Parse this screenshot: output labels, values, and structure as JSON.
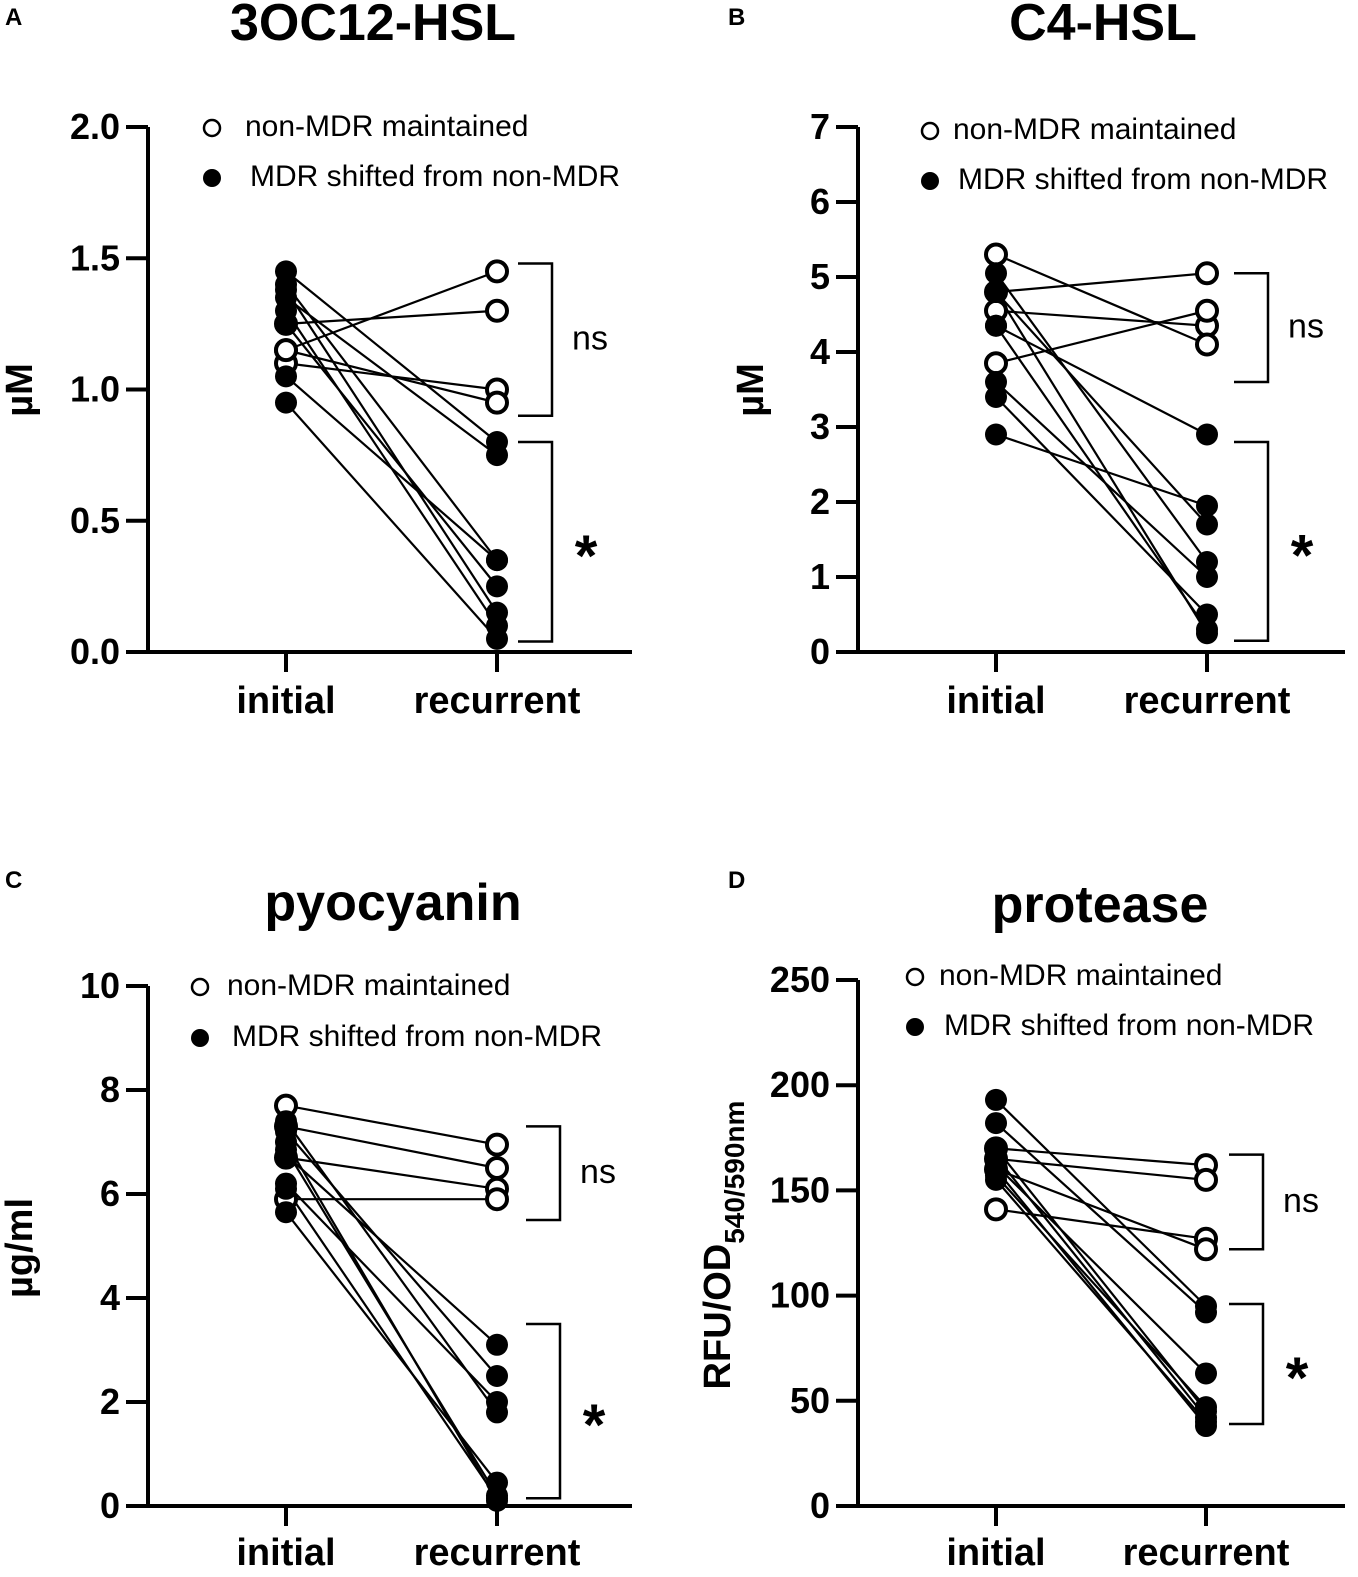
{
  "figure": {
    "panel_letters": [
      "A",
      "B",
      "C",
      "D"
    ]
  },
  "chart_data": [
    {
      "panel": "A",
      "type": "scatter",
      "title": "3OC12-HSL",
      "xlabel": "",
      "ylabel": "µM",
      "categories": [
        "initial",
        "recurrent"
      ],
      "ylim": [
        0,
        2.0
      ],
      "yticks": [
        0.0,
        0.5,
        1.0,
        1.5,
        2.0
      ],
      "ytick_labels": [
        "0.0",
        "0.5",
        "1.0",
        "1.5",
        "2.0"
      ],
      "legend": {
        "position": "top",
        "items": [
          {
            "label": "non-MDR maintained",
            "marker": "open"
          },
          {
            "label": "MDR shifted from non-MDR",
            "marker": "filled"
          }
        ]
      },
      "brackets": [
        {
          "label": "ns",
          "from": 0.9,
          "to": 1.48
        },
        {
          "label": "*",
          "from": 0.04,
          "to": 0.8
        }
      ],
      "series": [
        {
          "name": "non-MDR maintained",
          "marker": "open",
          "pairs": [
            [
              1.15,
              1.45
            ],
            [
              1.25,
              1.3
            ],
            [
              1.1,
              1.0
            ],
            [
              1.15,
              0.95
            ]
          ]
        },
        {
          "name": "MDR shifted from non-MDR",
          "marker": "filled",
          "pairs": [
            [
              1.45,
              0.8
            ],
            [
              1.35,
              0.75
            ],
            [
              1.4,
              0.35
            ],
            [
              1.25,
              0.25
            ],
            [
              1.05,
              0.35
            ],
            [
              1.38,
              0.15
            ],
            [
              1.3,
              0.1
            ],
            [
              0.95,
              0.05
            ]
          ]
        }
      ]
    },
    {
      "panel": "B",
      "type": "scatter",
      "title": "C4-HSL",
      "xlabel": "",
      "ylabel": "µM",
      "categories": [
        "initial",
        "recurrent"
      ],
      "ylim": [
        0,
        7
      ],
      "yticks": [
        0,
        1,
        2,
        3,
        4,
        5,
        6,
        7
      ],
      "ytick_labels": [
        "0",
        "1",
        "2",
        "3",
        "4",
        "5",
        "6",
        "7"
      ],
      "legend": {
        "position": "top",
        "items": [
          {
            "label": "non-MDR maintained",
            "marker": "open"
          },
          {
            "label": "MDR shifted from non-MDR",
            "marker": "filled"
          }
        ]
      },
      "brackets": [
        {
          "label": "ns",
          "from": 3.6,
          "to": 5.05
        },
        {
          "label": "*",
          "from": 0.15,
          "to": 2.8
        }
      ],
      "series": [
        {
          "name": "non-MDR maintained",
          "marker": "open",
          "pairs": [
            [
              4.8,
              5.05
            ],
            [
              4.55,
              4.35
            ],
            [
              3.85,
              4.55
            ],
            [
              5.3,
              4.1
            ]
          ]
        },
        {
          "name": "MDR shifted from non-MDR",
          "marker": "filled",
          "pairs": [
            [
              4.35,
              2.9
            ],
            [
              2.9,
              1.95
            ],
            [
              4.8,
              1.7
            ],
            [
              5.05,
              1.2
            ],
            [
              3.6,
              1.0
            ],
            [
              3.4,
              0.5
            ],
            [
              4.35,
              0.3
            ],
            [
              4.8,
              0.25
            ]
          ]
        }
      ]
    },
    {
      "panel": "C",
      "type": "scatter",
      "title": "pyocyanin",
      "xlabel": "",
      "ylabel": "µg/ml",
      "categories": [
        "initial",
        "recurrent"
      ],
      "ylim": [
        0,
        10
      ],
      "yticks": [
        0,
        2,
        4,
        6,
        8,
        10
      ],
      "ytick_labels": [
        "0",
        "2",
        "4",
        "6",
        "8",
        "10"
      ],
      "legend": {
        "position": "top",
        "items": [
          {
            "label": "non-MDR maintained",
            "marker": "open"
          },
          {
            "label": "MDR shifted from non-MDR",
            "marker": "filled"
          }
        ]
      },
      "brackets": [
        {
          "label": "ns",
          "from": 5.5,
          "to": 7.3
        },
        {
          "label": "*",
          "from": 0.15,
          "to": 3.5
        }
      ],
      "series": [
        {
          "name": "non-MDR maintained",
          "marker": "open",
          "pairs": [
            [
              7.7,
              6.95
            ],
            [
              7.3,
              6.5
            ],
            [
              6.7,
              6.1
            ],
            [
              5.9,
              5.9
            ]
          ]
        },
        {
          "name": "MDR shifted from non-MDR",
          "marker": "filled",
          "pairs": [
            [
              6.75,
              3.1
            ],
            [
              7.2,
              2.5
            ],
            [
              6.2,
              2.0
            ],
            [
              7.4,
              1.8
            ],
            [
              5.65,
              0.45
            ],
            [
              6.85,
              0.2
            ],
            [
              7.0,
              0.1
            ],
            [
              6.1,
              0.15
            ]
          ]
        }
      ]
    },
    {
      "panel": "D",
      "type": "scatter",
      "title": "protease",
      "xlabel": "",
      "ylabel": "RFU/OD",
      "ylabel_subscript": "540/590nm",
      "categories": [
        "initial",
        "recurrent"
      ],
      "ylim": [
        0,
        250
      ],
      "yticks": [
        0,
        50,
        100,
        150,
        200,
        250
      ],
      "ytick_labels": [
        "0",
        "50",
        "100",
        "150",
        "200",
        "250"
      ],
      "legend": {
        "position": "top",
        "items": [
          {
            "label": "non-MDR maintained",
            "marker": "open"
          },
          {
            "label": "MDR shifted from non-MDR",
            "marker": "filled"
          }
        ]
      },
      "brackets": [
        {
          "label": "ns",
          "from": 122,
          "to": 167
        },
        {
          "label": "*",
          "from": 39,
          "to": 96
        }
      ],
      "series": [
        {
          "name": "non-MDR maintained",
          "marker": "open",
          "pairs": [
            [
              170,
              162
            ],
            [
              165,
              155
            ],
            [
              141,
              127
            ],
            [
              160,
              122
            ]
          ]
        },
        {
          "name": "MDR shifted from non-MDR",
          "marker": "filled",
          "pairs": [
            [
              193,
              95
            ],
            [
              182,
              92
            ],
            [
              162,
              63
            ],
            [
              157,
              47
            ],
            [
              166,
              42
            ],
            [
              155,
              40
            ],
            [
              160,
              38
            ],
            [
              170,
              45
            ]
          ]
        }
      ]
    }
  ]
}
